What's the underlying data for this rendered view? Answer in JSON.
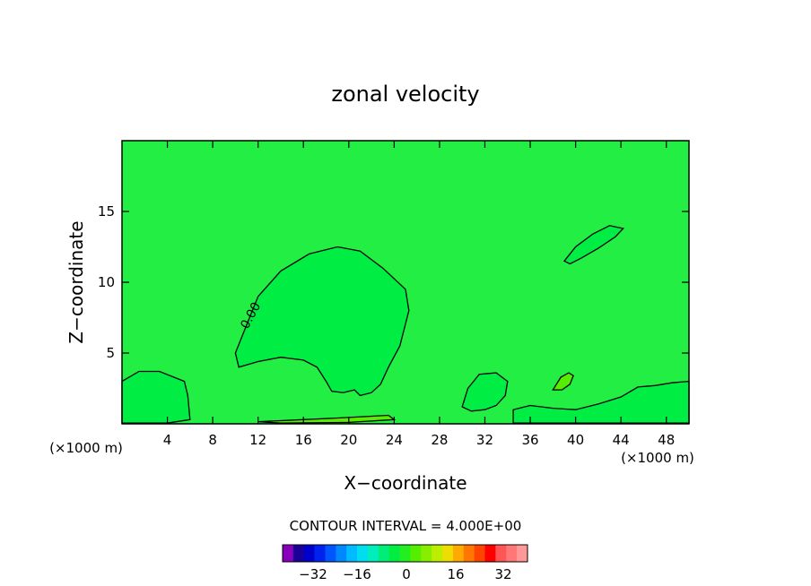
{
  "chart_data": {
    "type": "contour",
    "title": "zonal velocity",
    "xlabel": "X−coordinate",
    "ylabel": "Z−coordinate",
    "x_unit_left": "(×1000 m)",
    "x_unit_right": "(×1000 m)",
    "xlim": [
      0,
      50
    ],
    "ylim": [
      0,
      20
    ],
    "x_ticks": [
      4,
      8,
      12,
      16,
      20,
      24,
      28,
      32,
      36,
      40,
      44,
      48
    ],
    "y_ticks": [
      5,
      10,
      15
    ],
    "contour_label": "0.00",
    "contour_interval_text": "CONTOUR INTERVAL = 4.000E+00",
    "background_color": "#22ee44",
    "colorbar": {
      "colors": [
        "#8800bb",
        "#1a0099",
        "#0000cc",
        "#0022ee",
        "#0055ff",
        "#0088ff",
        "#00bbff",
        "#00ddee",
        "#00eebb",
        "#00ee77",
        "#00ee44",
        "#22ee22",
        "#55ee00",
        "#88ee00",
        "#bbee00",
        "#eedd00",
        "#ffaa00",
        "#ff7700",
        "#ff4400",
        "#ff0000",
        "#ff5555",
        "#ff7777",
        "#ff9999"
      ],
      "tick_labels": [
        "−32",
        "−16",
        "0",
        "16",
        "32"
      ]
    },
    "regions": [
      {
        "name": "central-weak-region",
        "color": "#00ee44",
        "points": [
          [
            10,
            5
          ],
          [
            11,
            7
          ],
          [
            12,
            9
          ],
          [
            14,
            10.8
          ],
          [
            16.5,
            12
          ],
          [
            19,
            12.5
          ],
          [
            21,
            12.2
          ],
          [
            23,
            11
          ],
          [
            25,
            9.5
          ],
          [
            25.3,
            8
          ],
          [
            24.5,
            5.5
          ],
          [
            23.5,
            4
          ],
          [
            22.8,
            2.8
          ],
          [
            22,
            2.2
          ],
          [
            21,
            2
          ],
          [
            20.5,
            2.4
          ],
          [
            19.5,
            2.2
          ],
          [
            18.5,
            2.3
          ],
          [
            18,
            3
          ],
          [
            17.2,
            4
          ],
          [
            16,
            4.5
          ],
          [
            14,
            4.7
          ],
          [
            12,
            4.4
          ],
          [
            10.3,
            4
          ]
        ]
      },
      {
        "name": "left-weak-region",
        "color": "#00ee44",
        "points": [
          [
            0,
            3
          ],
          [
            1.5,
            3.7
          ],
          [
            3.3,
            3.7
          ],
          [
            5.5,
            3
          ],
          [
            5.8,
            2
          ],
          [
            6,
            0.3
          ],
          [
            4,
            0.05
          ],
          [
            0,
            0.05
          ]
        ]
      },
      {
        "name": "upper-right-weak-region",
        "color": "#00ee44",
        "points": [
          [
            39,
            11.5
          ],
          [
            40,
            12.5
          ],
          [
            41.5,
            13.4
          ],
          [
            43,
            14
          ],
          [
            44.2,
            13.8
          ],
          [
            43.5,
            13.2
          ],
          [
            42,
            12.4
          ],
          [
            40.5,
            11.7
          ],
          [
            39.5,
            11.3
          ]
        ]
      },
      {
        "name": "mid-weak-region",
        "color": "#00ee44",
        "points": [
          [
            30,
            1.2
          ],
          [
            30.5,
            2.5
          ],
          [
            31.5,
            3.5
          ],
          [
            33,
            3.6
          ],
          [
            34,
            3
          ],
          [
            33.8,
            2
          ],
          [
            33,
            1.3
          ],
          [
            32,
            1
          ],
          [
            30.8,
            0.9
          ]
        ]
      },
      {
        "name": "right-weak-band",
        "color": "#00ee44",
        "points": [
          [
            34.5,
            0.05
          ],
          [
            34.5,
            1
          ],
          [
            36,
            1.3
          ],
          [
            38,
            1.1
          ],
          [
            40,
            1
          ],
          [
            42,
            1.4
          ],
          [
            44,
            1.9
          ],
          [
            45.5,
            2.6
          ],
          [
            47,
            2.7
          ],
          [
            48.5,
            2.9
          ],
          [
            50,
            3
          ],
          [
            50,
            0.05
          ]
        ]
      },
      {
        "name": "lower-stronger-patch",
        "color": "#55ee00",
        "points": [
          [
            38,
            2.4
          ],
          [
            38.7,
            3.3
          ],
          [
            39.4,
            3.6
          ],
          [
            39.8,
            3.4
          ],
          [
            39.5,
            2.8
          ],
          [
            38.8,
            2.4
          ]
        ]
      },
      {
        "name": "bottom-stronger-strip",
        "color": "#55ee00",
        "points": [
          [
            12,
            0.15
          ],
          [
            16,
            0.3
          ],
          [
            20,
            0.45
          ],
          [
            23.5,
            0.6
          ],
          [
            24,
            0.3
          ],
          [
            20,
            0.1
          ],
          [
            14,
            0.05
          ]
        ]
      }
    ]
  }
}
